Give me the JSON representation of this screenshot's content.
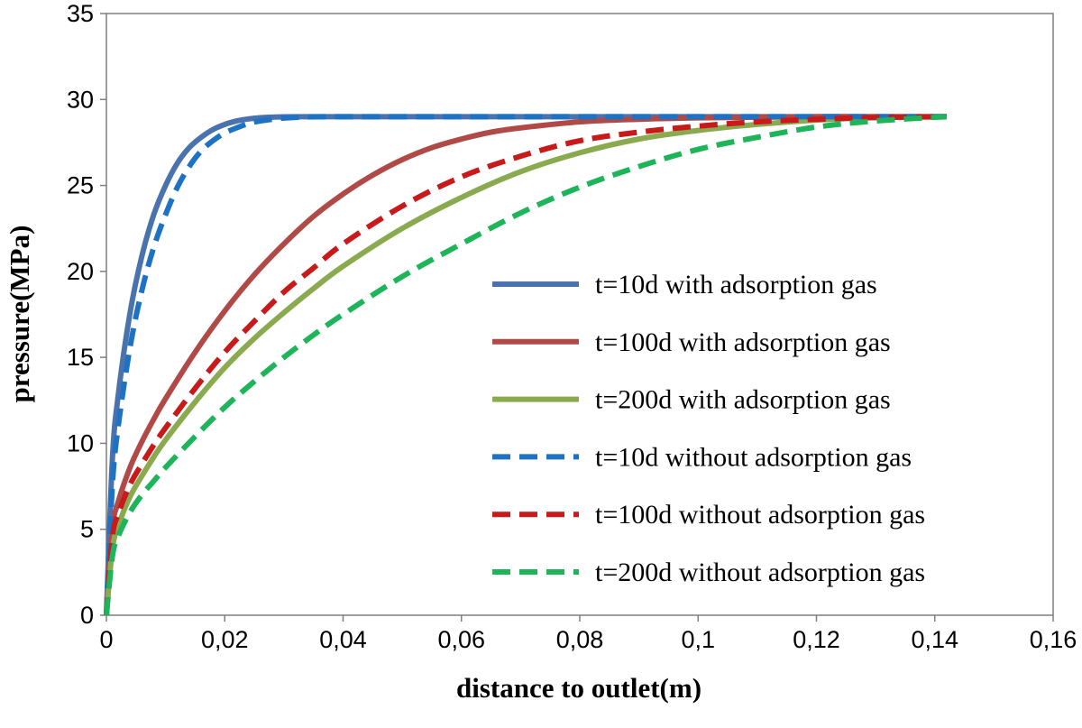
{
  "chart_data": {
    "type": "line",
    "title": "",
    "xlabel": "distance to outlet(m)",
    "ylabel": "pressure(MPa)",
    "xlim": [
      0,
      0.16
    ],
    "ylim": [
      0,
      35
    ],
    "x_ticks": [
      0,
      0.02,
      0.04,
      0.06,
      0.08,
      0.1,
      0.12,
      0.14,
      0.16
    ],
    "x_tick_labels": [
      "0",
      "0,02",
      "0,04",
      "0,06",
      "0,08",
      "0,1",
      "0,12",
      "0,14",
      "0,16"
    ],
    "y_ticks": [
      0,
      5,
      10,
      15,
      20,
      25,
      30,
      35
    ],
    "y_tick_labels": [
      "0",
      "5",
      "10",
      "15",
      "20",
      "25",
      "30",
      "35"
    ],
    "grid": false,
    "legend_position": "center-right",
    "series": [
      {
        "name": "t=10d with adsorption gas",
        "color": "#4a72ac",
        "style": "solid",
        "x": [
          0,
          0.001,
          0.002,
          0.004,
          0.006,
          0.008,
          0.01,
          0.012,
          0.014,
          0.016,
          0.018,
          0.02,
          0.022,
          0.024,
          0.026,
          0.028,
          0.03,
          0.035,
          0.04,
          0.06,
          0.08,
          0.1,
          0.12,
          0.142
        ],
        "values": [
          0,
          9.0,
          12.8,
          17.6,
          20.9,
          23.3,
          25.0,
          26.3,
          27.2,
          27.8,
          28.25,
          28.55,
          28.75,
          28.87,
          28.94,
          28.97,
          28.99,
          29.0,
          29.0,
          29.0,
          29.0,
          29.0,
          29.0,
          29.0
        ]
      },
      {
        "name": "t=100d with adsorption gas",
        "color": "#b04a47",
        "style": "solid",
        "x": [
          0,
          0.001,
          0.002,
          0.004,
          0.006,
          0.008,
          0.01,
          0.015,
          0.02,
          0.025,
          0.03,
          0.035,
          0.04,
          0.045,
          0.05,
          0.055,
          0.06,
          0.065,
          0.07,
          0.08,
          0.09,
          0.1,
          0.11,
          0.12,
          0.13,
          0.142
        ],
        "values": [
          0,
          5.0,
          6.6,
          8.6,
          10.1,
          11.4,
          12.6,
          15.3,
          17.7,
          19.8,
          21.6,
          23.2,
          24.5,
          25.6,
          26.5,
          27.2,
          27.7,
          28.1,
          28.35,
          28.7,
          28.85,
          28.93,
          28.97,
          29.0,
          29.0,
          29.0
        ]
      },
      {
        "name": "t=200d with adsorption gas",
        "color": "#8aaa4f",
        "style": "solid",
        "x": [
          0,
          0.001,
          0.002,
          0.004,
          0.006,
          0.008,
          0.01,
          0.015,
          0.02,
          0.025,
          0.03,
          0.035,
          0.04,
          0.05,
          0.06,
          0.07,
          0.08,
          0.09,
          0.1,
          0.11,
          0.12,
          0.13,
          0.142
        ],
        "values": [
          0,
          3.8,
          5.2,
          6.9,
          8.1,
          9.2,
          10.2,
          12.4,
          14.4,
          16.1,
          17.6,
          19.0,
          20.3,
          22.5,
          24.3,
          25.8,
          26.9,
          27.7,
          28.2,
          28.55,
          28.8,
          28.95,
          29.0
        ]
      },
      {
        "name": "t=10d without adsorption gas",
        "color": "#1e72c4",
        "style": "dashed",
        "x": [
          0,
          0.001,
          0.002,
          0.004,
          0.006,
          0.008,
          0.01,
          0.012,
          0.014,
          0.016,
          0.018,
          0.02,
          0.022,
          0.024,
          0.026,
          0.028,
          0.03,
          0.032,
          0.035,
          0.04,
          0.06,
          0.08,
          0.1,
          0.12,
          0.142
        ],
        "values": [
          0,
          7.5,
          11.0,
          15.6,
          18.9,
          21.4,
          23.3,
          24.9,
          26.1,
          27.0,
          27.6,
          28.05,
          28.35,
          28.6,
          28.75,
          28.85,
          28.92,
          28.96,
          28.99,
          29.0,
          29.0,
          29.0,
          29.0,
          29.0,
          29.0
        ]
      },
      {
        "name": "t=100d without adsorption gas",
        "color": "#c81a1a",
        "style": "dashed",
        "x": [
          0,
          0.001,
          0.002,
          0.004,
          0.006,
          0.008,
          0.01,
          0.015,
          0.02,
          0.025,
          0.03,
          0.035,
          0.04,
          0.05,
          0.06,
          0.07,
          0.08,
          0.09,
          0.1,
          0.11,
          0.12,
          0.13,
          0.142
        ],
        "values": [
          0,
          4.5,
          5.9,
          7.6,
          8.8,
          9.9,
          10.9,
          13.2,
          15.3,
          17.1,
          18.8,
          20.2,
          21.6,
          23.8,
          25.5,
          26.7,
          27.6,
          28.1,
          28.45,
          28.7,
          28.85,
          28.95,
          29.0
        ]
      },
      {
        "name": "t=200d without adsorption gas",
        "color": "#1eb45a",
        "style": "dashed",
        "x": [
          0,
          0.001,
          0.002,
          0.004,
          0.006,
          0.008,
          0.01,
          0.015,
          0.02,
          0.025,
          0.03,
          0.035,
          0.04,
          0.05,
          0.06,
          0.07,
          0.08,
          0.09,
          0.1,
          0.11,
          0.12,
          0.13,
          0.142
        ],
        "values": [
          0,
          3.4,
          4.6,
          6.0,
          7.0,
          7.8,
          8.6,
          10.4,
          12.1,
          13.6,
          15.0,
          16.3,
          17.5,
          19.7,
          21.6,
          23.4,
          24.9,
          26.1,
          27.1,
          27.8,
          28.4,
          28.75,
          29.0
        ]
      }
    ]
  }
}
